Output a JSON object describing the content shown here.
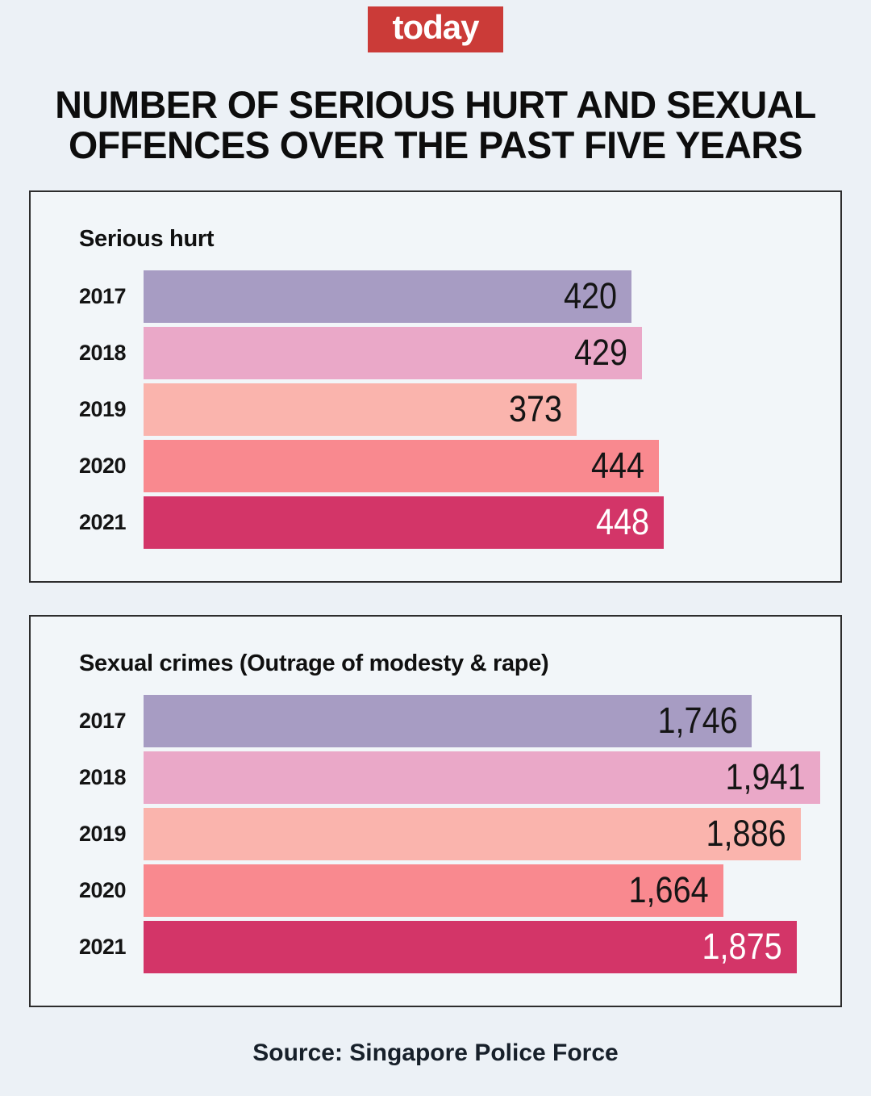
{
  "logo": {
    "text": "today",
    "bg_color": "#cb3b38",
    "text_color": "#ffffff"
  },
  "title": {
    "lines": [
      "NUMBER OF SERIOUS HURT AND SEXUAL",
      "OFFENCES OVER THE PAST FIVE YEARS"
    ]
  },
  "chart_data": [
    {
      "type": "bar",
      "orientation": "horizontal",
      "title": "Serious hurt",
      "categories": [
        "2017",
        "2018",
        "2019",
        "2020",
        "2021"
      ],
      "values": [
        420,
        429,
        373,
        444,
        448
      ],
      "value_labels": [
        "420",
        "429",
        "373",
        "444",
        "448"
      ],
      "xlim": [
        0,
        600
      ],
      "xlabel": "",
      "ylabel": "",
      "grid": false,
      "legend": "none",
      "bar_colors": [
        "#a79cc3",
        "#eaa8c8",
        "#fab4ad",
        "#f9898f",
        "#d33568"
      ],
      "value_text_colors": [
        "#151515",
        "#151515",
        "#151515",
        "#151515",
        "#ffffff"
      ]
    },
    {
      "type": "bar",
      "orientation": "horizontal",
      "title": "Sexual crimes (Outrage of modesty & rape)",
      "categories": [
        "2017",
        "2018",
        "2019",
        "2020",
        "2021"
      ],
      "values": [
        1746,
        1941,
        1886,
        1664,
        1875
      ],
      "value_labels": [
        "1,746",
        "1,941",
        "1,886",
        "1,664",
        "1,875"
      ],
      "xlim": [
        0,
        2000
      ],
      "xlabel": "",
      "ylabel": "",
      "grid": false,
      "legend": "none",
      "bar_colors": [
        "#a79cc3",
        "#eaa8c8",
        "#fab4ad",
        "#f9898f",
        "#d33568"
      ],
      "value_text_colors": [
        "#151515",
        "#151515",
        "#151515",
        "#151515",
        "#ffffff"
      ]
    }
  ],
  "source": {
    "text": "Source: Singapore Police Force"
  },
  "page_colors": {
    "background": "#ecf1f6",
    "panel_background": "#f2f6f9",
    "panel_border": "#2d2d2d"
  }
}
